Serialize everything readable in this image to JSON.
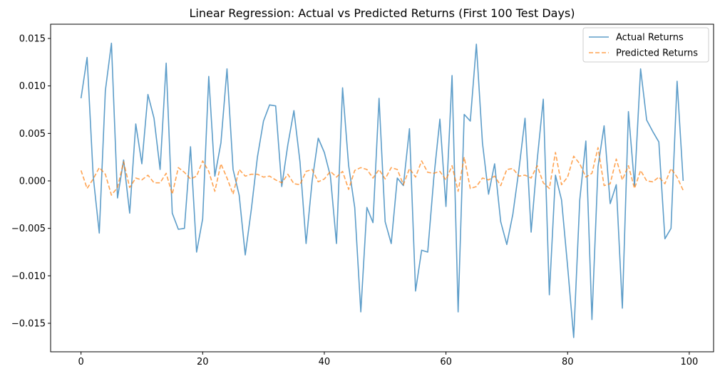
{
  "chart_data": {
    "type": "line",
    "title": "Linear Regression: Actual vs Predicted Returns (First 100 Test Days)",
    "xlabel": "",
    "ylabel": "",
    "xlim": [
      -5,
      104
    ],
    "ylim": [
      -0.018,
      0.0165
    ],
    "x_ticks": [
      0,
      20,
      40,
      60,
      80,
      100
    ],
    "x_tick_labels": [
      "0",
      "20",
      "40",
      "60",
      "80",
      "100"
    ],
    "y_ticks": [
      -0.015,
      -0.01,
      -0.005,
      0.0,
      0.005,
      0.01,
      0.015
    ],
    "y_tick_labels": [
      "−0.015",
      "−0.010",
      "−0.005",
      "0.000",
      "0.005",
      "0.010",
      "0.015"
    ],
    "legend": {
      "position": "top-right"
    },
    "grid": false,
    "series": [
      {
        "name": "Actual Returns",
        "color": "#1f77b4",
        "style": "solid",
        "values": [
          0.0087,
          0.013,
          0.0005,
          -0.0055,
          0.0095,
          0.0145,
          -0.0018,
          0.0022,
          -0.0034,
          0.006,
          0.0018,
          0.0091,
          0.0066,
          0.0012,
          0.0124,
          -0.0034,
          -0.0051,
          -0.005,
          0.0036,
          -0.0075,
          -0.004,
          0.011,
          0.0005,
          0.004,
          0.0118,
          0.0012,
          -0.0015,
          -0.0078,
          -0.003,
          0.0025,
          0.0063,
          0.008,
          0.0079,
          -0.0006,
          0.0038,
          0.0074,
          0.002,
          -0.0066,
          0.0,
          0.0045,
          0.003,
          0.0005,
          -0.0066,
          0.0098,
          0.0016,
          -0.0028,
          -0.0138,
          -0.0028,
          -0.0044,
          0.0087,
          -0.0043,
          -0.0066,
          0.0003,
          -0.0005,
          0.0055,
          -0.0116,
          -0.0073,
          -0.0075,
          0.0003,
          0.0065,
          -0.0027,
          0.0111,
          -0.0138,
          0.007,
          0.0063,
          0.0144,
          0.004,
          -0.0014,
          0.0018,
          -0.0043,
          -0.0067,
          -0.0035,
          0.0012,
          0.0066,
          -0.0054,
          0.0022,
          0.0086,
          -0.012,
          0.0006,
          -0.002,
          -0.009,
          -0.0165,
          -0.002,
          0.0042,
          -0.0146,
          0.0015,
          0.0058,
          -0.0024,
          -0.0004,
          -0.0134,
          0.0073,
          -0.0005,
          0.0118,
          0.0064,
          0.0052,
          0.0041,
          -0.0061,
          -0.005,
          0.0105,
          0.0
        ]
      },
      {
        "name": "Predicted Returns",
        "color": "#ff7f0e",
        "style": "dashed",
        "values": [
          0.0011,
          -0.0008,
          0.0002,
          0.0014,
          0.0007,
          -0.0015,
          -0.0007,
          0.002,
          -0.0007,
          0.0003,
          0.0001,
          0.0006,
          -0.0002,
          -0.0002,
          0.0008,
          -0.0014,
          0.0014,
          0.0009,
          0.0002,
          0.0005,
          0.0021,
          0.001,
          -0.0011,
          0.0018,
          0.0003,
          -0.0014,
          0.0012,
          0.0005,
          0.0007,
          0.0007,
          0.0004,
          0.0005,
          0.0001,
          -0.0002,
          0.0007,
          -0.0003,
          -0.0004,
          0.001,
          0.0012,
          -0.0001,
          0.0002,
          0.001,
          0.0004,
          0.001,
          -0.0009,
          0.0011,
          0.0014,
          0.0012,
          0.0003,
          0.0012,
          0.0002,
          0.0014,
          0.0012,
          -0.0004,
          0.0013,
          0.0004,
          0.0021,
          0.0009,
          0.0008,
          0.001,
          0.0001,
          0.0016,
          -0.0011,
          0.0025,
          -0.0008,
          -0.0006,
          0.0003,
          0.0001,
          0.0005,
          -0.0005,
          0.0012,
          0.0013,
          0.0005,
          0.0006,
          0.0003,
          0.0016,
          -0.0002,
          -0.0008,
          0.003,
          -0.0004,
          0.0004,
          0.0026,
          0.0018,
          0.0004,
          0.0008,
          0.0035,
          -0.0005,
          -0.0003,
          0.0023,
          0.0001,
          0.0016,
          -0.0008,
          0.0011,
          0.0,
          -0.0001,
          0.0004,
          -0.0003,
          0.0013,
          0.0004,
          -0.001
        ]
      }
    ]
  }
}
